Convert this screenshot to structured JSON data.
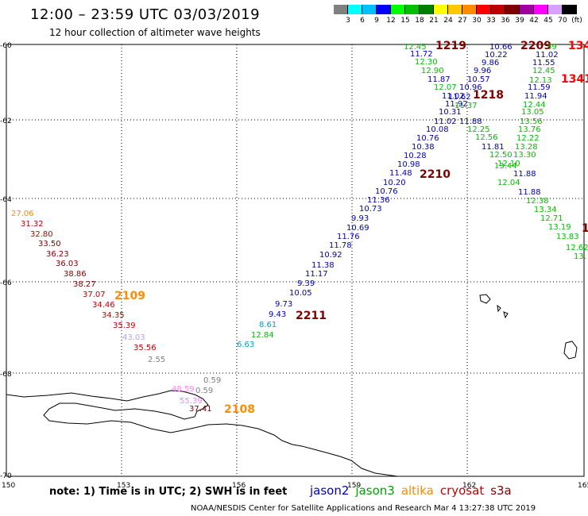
{
  "header": {
    "title": "12:00 – 23:59 UTC 03/03/2019",
    "subtitle": "12 hour collection of altimeter wave heights"
  },
  "color_scale": {
    "labels": [
      "3",
      "6",
      "9",
      "12",
      "15",
      "18",
      "21",
      "24",
      "27",
      "30",
      "33",
      "36",
      "39",
      "42",
      "45",
      "70",
      "(ft)"
    ],
    "colors": [
      "#808080",
      "#00ffff",
      "#00bfff",
      "#0000ff",
      "#00ff00",
      "#00c000",
      "#008000",
      "#ffff00",
      "#ffc800",
      "#ff8c00",
      "#ff0000",
      "#c00000",
      "#800000",
      "#a000a0",
      "#ff00ff",
      "#d8a0ff",
      "#000000"
    ]
  },
  "axes": {
    "lon_labels": [
      "150",
      "153",
      "156",
      "159",
      "162",
      "165"
    ],
    "lat_labels": [
      "-60",
      "-62",
      "-64",
      "-66",
      "-68",
      "-70"
    ]
  },
  "time_labels": [
    {
      "text": "1219",
      "color": "#800000"
    },
    {
      "text": "2209",
      "color": "#800000"
    },
    {
      "text": "134",
      "color": "#ff0000"
    },
    {
      "text": "1341",
      "color": "#ff0000"
    },
    {
      "text": "1218",
      "color": "#800000"
    },
    {
      "text": "2210",
      "color": "#800000"
    },
    {
      "text": "2109",
      "color": "#ff8c00"
    },
    {
      "text": "2211",
      "color": "#800000"
    },
    {
      "text": "2108",
      "color": "#ff8c00"
    },
    {
      "text": "1",
      "color": "#800000"
    }
  ],
  "tracks": {
    "track_1219_blue": [
      "11.72",
      "12.30",
      "12.90",
      "11.87",
      "12.07",
      "11.02",
      "11.92",
      "10.31",
      "11.02",
      "10.08",
      "10.76",
      "10.38",
      "10.28",
      "10.98",
      "11.48",
      "10.20",
      "10.76",
      "11.36",
      "10.73",
      "9.93",
      "10.69",
      "11.76",
      "11.78",
      "10.92",
      "11.38",
      "11.17",
      "9.39",
      "10.05",
      "9.73",
      "9.43",
      "8.61",
      "12.84",
      "6.63"
    ],
    "track_1219_colors": [
      "#0000c0",
      "#00c000",
      "#00c000",
      "#0000c0",
      "#00c000",
      "#0000c0",
      "#0000c0",
      "#0000c0",
      "#0000c0",
      "#0000c0",
      "#0000c0",
      "#0000c0",
      "#0000c0",
      "#0000c0",
      "#0000c0",
      "#0000c0",
      "#0000c0",
      "#0000c0",
      "#0000c0",
      "#0000c0",
      "#0000c0",
      "#0000c0",
      "#0000c0",
      "#0000c0",
      "#0000c0",
      "#0000c0",
      "#0000c0",
      "#0000c0",
      "#0000c0",
      "#0000c0",
      "#00a0c0",
      "#00c000",
      "#00a0c0"
    ],
    "track_top_left": "12.45",
    "track_2209": [
      "10.66",
      "10.22",
      "9.86",
      "9.96",
      "10.57",
      "10.96",
      "11.62",
      "11.37",
      "11.88",
      "12.25",
      "12.56",
      "11.81",
      "12.50",
      "12.10",
      "11.88"
    ],
    "track_2209_colors": [
      "#0000c0",
      "#0000c0",
      "#0000c0",
      "#0000c0",
      "#0000c0",
      "#0000c0",
      "#0000c0",
      "#00c000",
      "#0000c0",
      "#00c000",
      "#00c000",
      "#0000c0",
      "#00c000",
      "#00c000",
      "#0000c0"
    ],
    "track_1341": [
      "39",
      "11.02",
      "11.55",
      "12.45",
      "12.13",
      "11.59",
      "11.94",
      "12.44",
      "13.05",
      "13.56",
      "13.76",
      "12.22",
      "13.28",
      "13.30",
      "13.44",
      "12.04",
      "11.88",
      "12.38",
      "13.34",
      "12.71",
      "13.19",
      "13.83",
      "12.62",
      "13."
    ],
    "track_1341_colors": [
      "#00c000",
      "#0000c0",
      "#0000c0",
      "#00c000",
      "#00c000",
      "#0000c0",
      "#0000c0",
      "#00c000",
      "#00c000",
      "#00c000",
      "#00c000",
      "#00c000",
      "#00c000",
      "#00c000",
      "#00c000",
      "#00c000",
      "#0000c0",
      "#00c000",
      "#00c000",
      "#00c000",
      "#00c000",
      "#00c000",
      "#00c000",
      "#00c000"
    ],
    "track_2109": [
      "27.06",
      "31.32",
      "32.80",
      "33.50",
      "36.23",
      "36.03",
      "38.86",
      "38.27",
      "37.07",
      "34.46",
      "34.35",
      "35.39",
      "43.03",
      "35.56",
      "2.55"
    ],
    "track_2109_colors": [
      "#ff8c00",
      "#c00000",
      "#c00000",
      "#800000",
      "#800000",
      "#800000",
      "#800000",
      "#800000",
      "#c00000",
      "#c00000",
      "#c00000",
      "#c00000",
      "#b0a0ff",
      "#c00000",
      "#808080"
    ],
    "track_2108": [
      "0.59",
      "48.59",
      "0.59",
      "55.39",
      "37.41"
    ],
    "track_2108_colors": [
      "#808080",
      "#ff80ff",
      "#808080",
      "#ff80ff",
      "#800000"
    ]
  },
  "note": "note: 1) Time is in UTC; 2) SWH is in feet",
  "satellites": [
    {
      "name": "jason2",
      "color": "#0000c0"
    },
    {
      "name": "jason3",
      "color": "#00a000"
    },
    {
      "name": "altika",
      "color": "#ff8c00"
    },
    {
      "name": "cryosat",
      "color": "#c00000"
    },
    {
      "name": "s3a",
      "color": "#800000"
    }
  ],
  "footer": "NOAA/NESDIS Center for Satellite Applications and Research    Mar  4 13:27:38 UTC 2019"
}
